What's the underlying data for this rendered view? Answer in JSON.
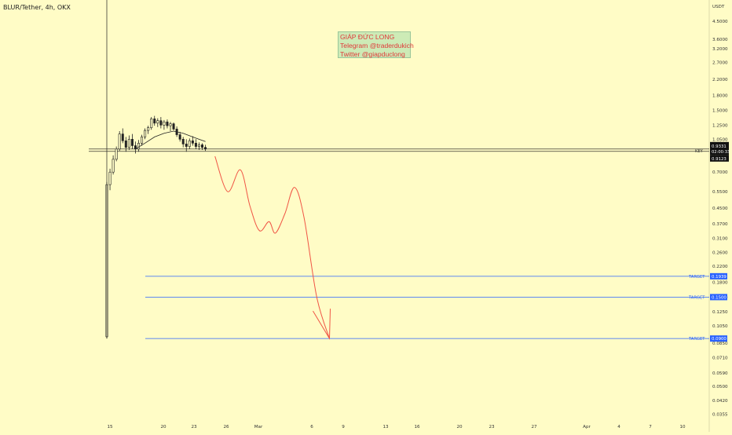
{
  "header": {
    "symbol": "BLUR/Tether, 4h, OKX"
  },
  "annotation": {
    "lines": [
      "GIÁP ĐỨC LONG",
      "Telegram @traderdukich",
      "Twitter @giapduclong"
    ]
  },
  "colors": {
    "background": "#fffcc6",
    "up": "#222222",
    "down": "#222222",
    "ma": "#222222",
    "projection": "#f05545",
    "target": "#2962ff",
    "key": "#111111"
  },
  "chart_data": {
    "type": "line",
    "y_scale": "log",
    "axis_unit": "USDT",
    "x_tick_labels": [
      "15",
      "20",
      "23",
      "26",
      "Mar",
      "6",
      "9",
      "13",
      "16",
      "20",
      "23",
      "27",
      "Apr",
      "4",
      "7",
      "10"
    ],
    "y_tick_labels": [
      "4.5000",
      "3.6000",
      "3.2000",
      "2.7000",
      "2.2000",
      "1.8000",
      "1.5000",
      "1.2500",
      "1.0500",
      "0.8500",
      "0.7000",
      "0.5500",
      "0.4500",
      "0.3700",
      "0.3100",
      "0.2600",
      "0.2200",
      "0.1800",
      "0.1500",
      "0.1250",
      "0.1050",
      "0.0850",
      "0.0710",
      "0.0590",
      "0.0500",
      "0.0420",
      "0.0355"
    ],
    "ylim": [
      0.032,
      5.2
    ],
    "price_labels": {
      "last": "0.9331",
      "countdown": "02:00:33",
      "key_level": "0.9123"
    },
    "levels": [
      {
        "label": "KEY",
        "value": 0.9123
      },
      {
        "label": "TARGET",
        "value": 0.1939
      },
      {
        "label": "TARGET",
        "value": 0.15
      },
      {
        "label": "TARGET",
        "value": 0.09
      }
    ],
    "candles": [
      [
        0.092,
        0.62,
        0.09,
        0.6
      ],
      [
        0.6,
        0.73,
        0.56,
        0.7
      ],
      [
        0.7,
        0.86,
        0.68,
        0.82
      ],
      [
        0.82,
        0.96,
        0.8,
        0.93
      ],
      [
        0.93,
        1.16,
        0.91,
        1.12
      ],
      [
        1.12,
        1.2,
        1.0,
        1.03
      ],
      [
        1.03,
        1.08,
        0.9,
        0.95
      ],
      [
        0.95,
        1.1,
        0.92,
        1.05
      ],
      [
        1.05,
        1.12,
        0.93,
        0.97
      ],
      [
        0.97,
        1.02,
        0.88,
        0.93
      ],
      [
        0.93,
        1.04,
        0.9,
        1.0
      ],
      [
        1.0,
        1.11,
        0.97,
        1.08
      ],
      [
        1.08,
        1.2,
        1.05,
        1.17
      ],
      [
        1.17,
        1.24,
        1.12,
        1.21
      ],
      [
        1.21,
        1.38,
        1.18,
        1.35
      ],
      [
        1.35,
        1.4,
        1.24,
        1.28
      ],
      [
        1.28,
        1.36,
        1.22,
        1.32
      ],
      [
        1.32,
        1.38,
        1.2,
        1.25
      ],
      [
        1.25,
        1.33,
        1.18,
        1.3
      ],
      [
        1.3,
        1.34,
        1.2,
        1.24
      ],
      [
        1.24,
        1.3,
        1.16,
        1.27
      ],
      [
        1.27,
        1.29,
        1.17,
        1.19
      ],
      [
        1.19,
        1.23,
        1.08,
        1.11
      ],
      [
        1.11,
        1.15,
        1.02,
        1.05
      ],
      [
        1.05,
        1.08,
        0.95,
        0.99
      ],
      [
        0.99,
        1.05,
        0.9,
        0.96
      ],
      [
        0.96,
        1.06,
        0.93,
        1.03
      ],
      [
        1.03,
        1.09,
        0.97,
        1.0
      ],
      [
        1.0,
        1.05,
        0.93,
        0.96
      ],
      [
        0.96,
        1.01,
        0.92,
        0.98
      ],
      [
        0.98,
        1.0,
        0.92,
        0.95
      ],
      [
        0.95,
        0.98,
        0.91,
        0.93
      ]
    ],
    "moving_average": [
      [
        9,
        0.93
      ],
      [
        12,
        1.0
      ],
      [
        15,
        1.08
      ],
      [
        18,
        1.13
      ],
      [
        21,
        1.16
      ],
      [
        24,
        1.13
      ],
      [
        27,
        1.08
      ],
      [
        31,
        1.02
      ]
    ],
    "projection_path": [
      [
        34,
        0.85
      ],
      [
        38,
        0.55
      ],
      [
        42,
        0.72
      ],
      [
        45,
        0.46
      ],
      [
        48,
        0.34
      ],
      [
        51,
        0.38
      ],
      [
        53,
        0.33
      ],
      [
        56,
        0.42
      ],
      [
        59,
        0.58
      ],
      [
        62,
        0.4
      ],
      [
        66,
        0.15
      ],
      [
        70,
        0.09
      ]
    ]
  }
}
